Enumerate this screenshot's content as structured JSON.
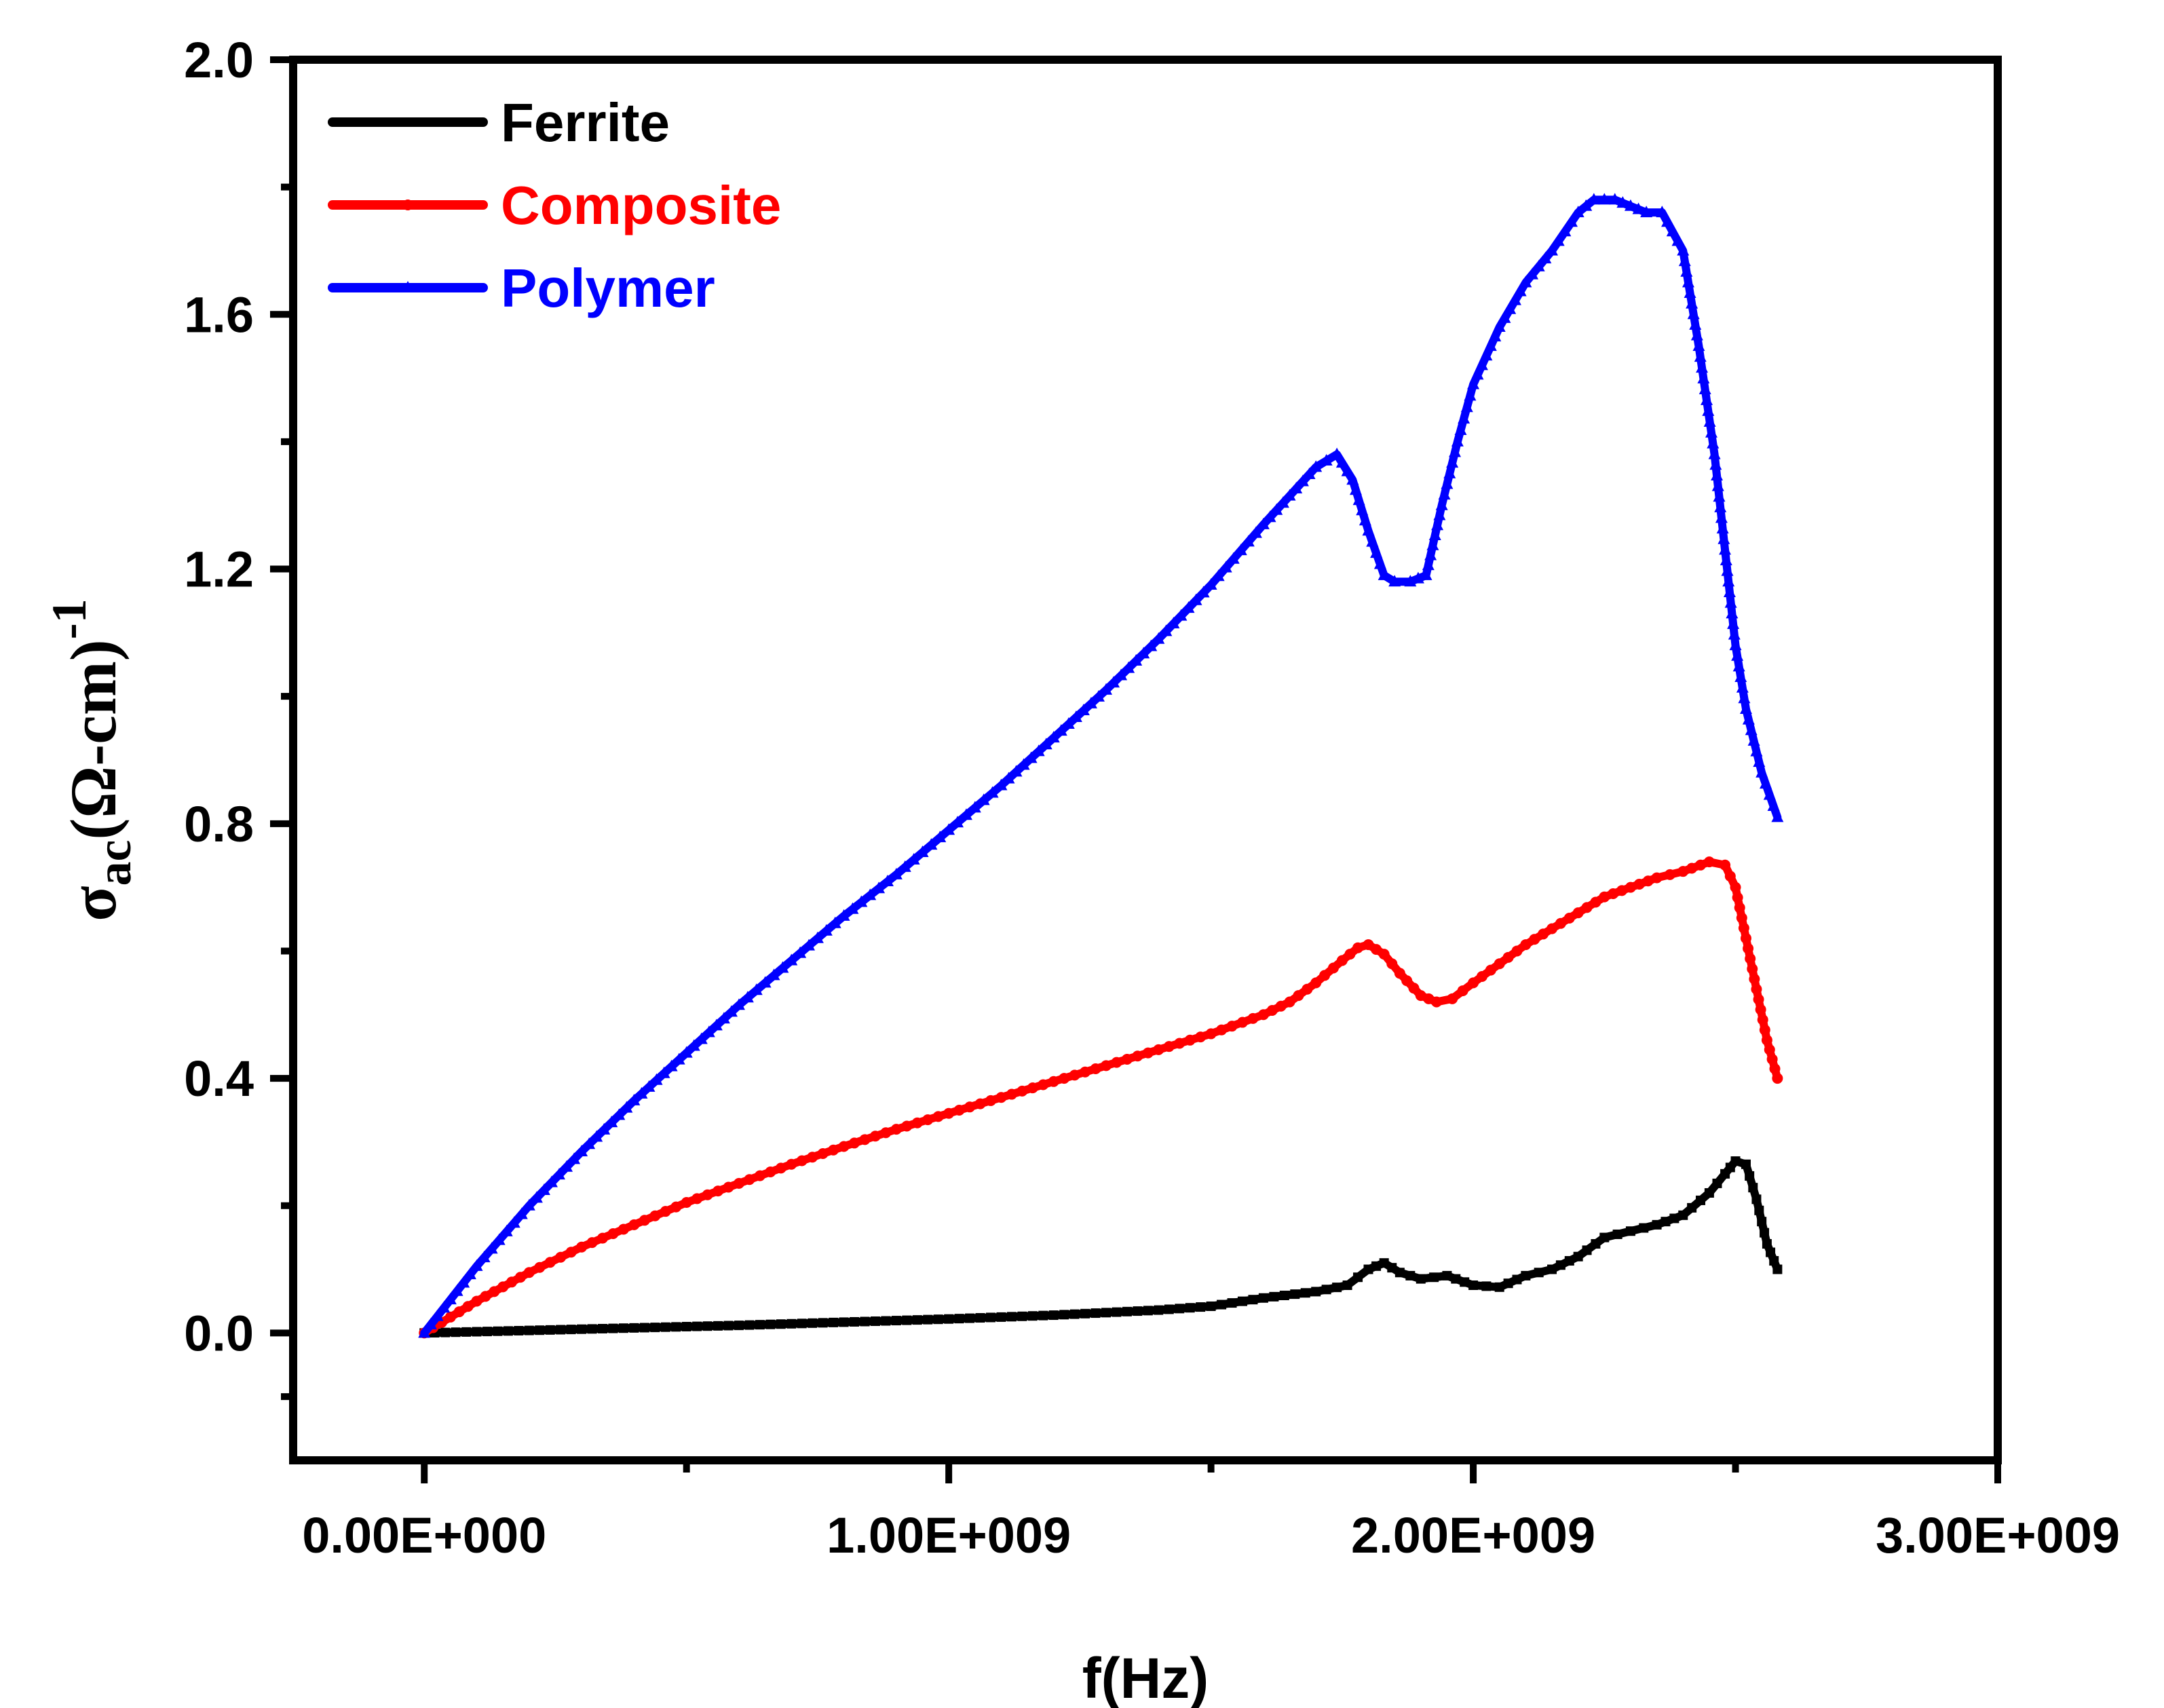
{
  "chart_data": {
    "type": "line",
    "title": "",
    "xlabel": "f(Hz)",
    "ylabel": {
      "main": "σ",
      "sub": "ac",
      "rest": "(Ω-cm)",
      "sup": "-1"
    },
    "xlim": [
      -250000000,
      3000000000
    ],
    "ylim": [
      -0.2,
      2.0
    ],
    "x_ticks": [
      0,
      1000000000,
      2000000000,
      3000000000
    ],
    "x_tick_labels": [
      "0.00E+000",
      "1.00E+009",
      "2.00E+009",
      "3.00E+009"
    ],
    "y_ticks": [
      0.0,
      0.4,
      0.8,
      1.2,
      1.6,
      2.0
    ],
    "y_tick_labels": [
      "0.0",
      "0.4",
      "0.8",
      "1.2",
      "1.6",
      "2.0"
    ],
    "legend_position": "top-left",
    "series": [
      {
        "name": "Ferrite",
        "color": "#000000",
        "marker": "square",
        "x": [
          0,
          200000000,
          400000000,
          600000000,
          800000000,
          1000000000,
          1200000000,
          1400000000,
          1500000000,
          1600000000,
          1700000000,
          1760000000,
          1800000000,
          1830000000,
          1860000000,
          1900000000,
          1950000000,
          2000000000,
          2050000000,
          2100000000,
          2150000000,
          2200000000,
          2250000000,
          2300000000,
          2350000000,
          2400000000,
          2450000000,
          2480000000,
          2500000000,
          2520000000,
          2540000000,
          2560000000,
          2580000000
        ],
        "y": [
          0.0,
          0.004,
          0.008,
          0.012,
          0.017,
          0.022,
          0.028,
          0.036,
          0.042,
          0.055,
          0.065,
          0.075,
          0.1,
          0.11,
          0.095,
          0.085,
          0.09,
          0.075,
          0.072,
          0.09,
          0.1,
          0.12,
          0.15,
          0.16,
          0.17,
          0.185,
          0.22,
          0.25,
          0.27,
          0.265,
          0.21,
          0.14,
          0.1
        ]
      },
      {
        "name": "Composite",
        "color": "#ff0000",
        "marker": "circle",
        "x": [
          0,
          100000000,
          200000000,
          300000000,
          400000000,
          500000000,
          600000000,
          700000000,
          800000000,
          900000000,
          1000000000,
          1100000000,
          1200000000,
          1300000000,
          1400000000,
          1500000000,
          1600000000,
          1650000000,
          1700000000,
          1750000000,
          1780000000,
          1800000000,
          1830000000,
          1860000000,
          1900000000,
          1930000000,
          1960000000,
          2000000000,
          2050000000,
          2100000000,
          2150000000,
          2200000000,
          2250000000,
          2300000000,
          2350000000,
          2400000000,
          2450000000,
          2480000000,
          2500000000,
          2520000000,
          2540000000,
          2560000000,
          2580000000
        ],
        "y": [
          0.0,
          0.05,
          0.095,
          0.135,
          0.17,
          0.205,
          0.235,
          0.265,
          0.293,
          0.32,
          0.345,
          0.37,
          0.395,
          0.42,
          0.445,
          0.47,
          0.5,
          0.52,
          0.55,
          0.585,
          0.605,
          0.61,
          0.595,
          0.565,
          0.53,
          0.52,
          0.525,
          0.55,
          0.58,
          0.61,
          0.635,
          0.66,
          0.685,
          0.7,
          0.715,
          0.725,
          0.74,
          0.735,
          0.7,
          0.62,
          0.54,
          0.46,
          0.4
        ]
      },
      {
        "name": "Polymer",
        "color": "#0000ff",
        "marker": "triangle",
        "x": [
          0,
          100000000,
          200000000,
          300000000,
          400000000,
          500000000,
          600000000,
          700000000,
          800000000,
          900000000,
          1000000000,
          1100000000,
          1200000000,
          1300000000,
          1400000000,
          1500000000,
          1600000000,
          1650000000,
          1700000000,
          1740000000,
          1770000000,
          1800000000,
          1830000000,
          1850000000,
          1880000000,
          1910000000,
          1940000000,
          1970000000,
          2000000000,
          2050000000,
          2100000000,
          2150000000,
          2200000000,
          2230000000,
          2270000000,
          2300000000,
          2330000000,
          2360000000,
          2400000000,
          2430000000,
          2460000000,
          2480000000,
          2500000000,
          2520000000,
          2550000000,
          2580000000
        ],
        "y": [
          0.0,
          0.105,
          0.2,
          0.285,
          0.365,
          0.44,
          0.515,
          0.585,
          0.655,
          0.72,
          0.79,
          0.86,
          0.935,
          1.01,
          1.09,
          1.175,
          1.27,
          1.315,
          1.36,
          1.38,
          1.34,
          1.26,
          1.19,
          1.18,
          1.18,
          1.19,
          1.3,
          1.4,
          1.49,
          1.58,
          1.65,
          1.7,
          1.76,
          1.78,
          1.78,
          1.77,
          1.76,
          1.76,
          1.7,
          1.55,
          1.38,
          1.23,
          1.08,
          0.98,
          0.88,
          0.81
        ]
      }
    ]
  }
}
